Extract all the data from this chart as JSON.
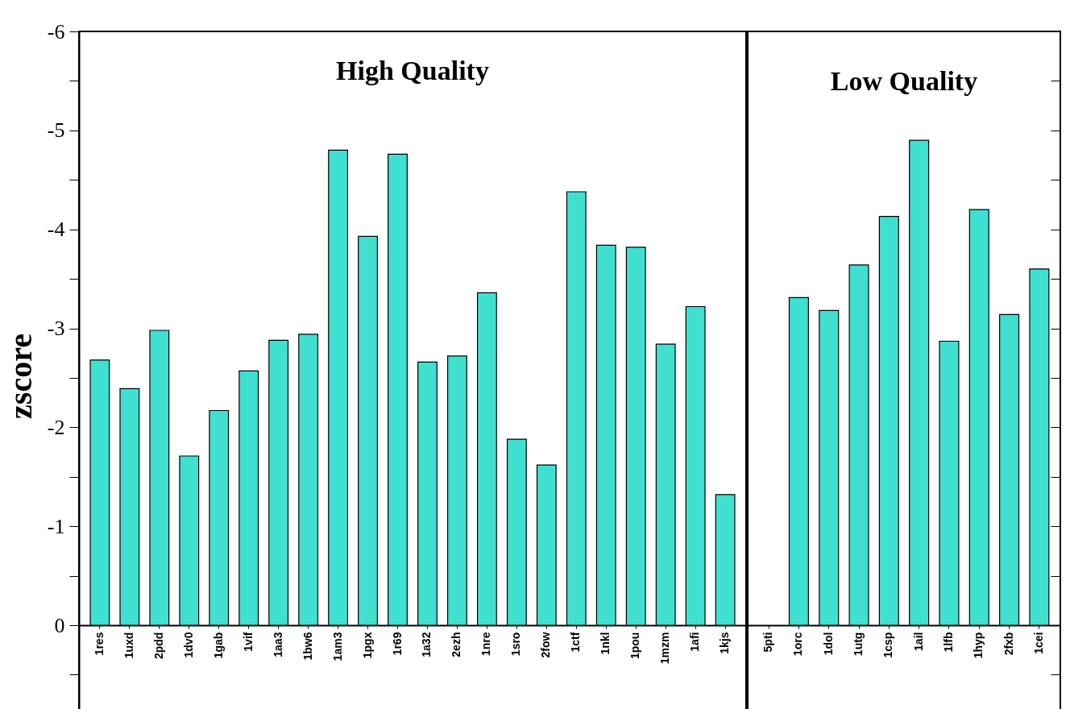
{
  "chart_data": [
    {
      "type": "bar",
      "title": "High Quality",
      "ylabel": "zscore",
      "color": "#40e0d0",
      "categories": [
        "1res",
        "1uxd",
        "2pdd",
        "1dv0",
        "1gab",
        "1vif",
        "1aa3",
        "1bw6",
        "1am3",
        "1pgx",
        "1r69",
        "1a32",
        "2ezh",
        "1nre",
        "1sro",
        "2fow",
        "1ctf",
        "1nkl",
        "1pou",
        "1mzm",
        "1afi",
        "1kjs"
      ],
      "values": [
        -2.68,
        -2.39,
        -2.98,
        -1.71,
        -2.17,
        -2.57,
        -2.88,
        -2.94,
        -4.8,
        -3.93,
        -4.76,
        -2.66,
        -2.72,
        -3.36,
        -1.88,
        -1.62,
        -4.38,
        -3.84,
        -3.82,
        -2.84,
        -3.22,
        -1.32
      ],
      "ylim": [
        0.96,
        -6
      ],
      "yticks": [
        -6,
        {
          "value": -5.5,
          "label": null
        },
        -5,
        {
          "value": -4.5,
          "label": null
        },
        -4,
        {
          "value": -3.5,
          "label": null
        },
        -3,
        {
          "value": -2.5,
          "label": null
        },
        -2,
        {
          "value": -1.5,
          "label": null
        },
        -1,
        {
          "value": -0.5,
          "label": null
        },
        0,
        {
          "value": 0.5,
          "label": null
        }
      ],
      "grid": false
    },
    {
      "type": "bar",
      "title": "Low Quality",
      "color": "#40e0d0",
      "categories": [
        "5pti",
        "1orc",
        "1dol",
        "1utg",
        "1csp",
        "1ail",
        "1lfb",
        "1hyp",
        "2fxb",
        "1cei"
      ],
      "values": [
        null,
        -3.31,
        -3.18,
        -3.64,
        -4.13,
        -4.9,
        -2.87,
        -4.2,
        -3.14,
        -3.6
      ],
      "ylim": [
        0.96,
        -6
      ],
      "yticks": [
        -6,
        {
          "value": -5.5,
          "label": null
        },
        -5,
        {
          "value": -4.5,
          "label": null
        },
        -4,
        {
          "value": -3.5,
          "label": null
        },
        -3,
        {
          "value": -2.5,
          "label": null
        },
        -2,
        {
          "value": -1.5,
          "label": null
        },
        -1,
        {
          "value": -0.5,
          "label": null
        },
        0,
        {
          "value": 0.5,
          "label": null
        }
      ],
      "tick_labels": "x",
      "grid": false
    }
  ]
}
